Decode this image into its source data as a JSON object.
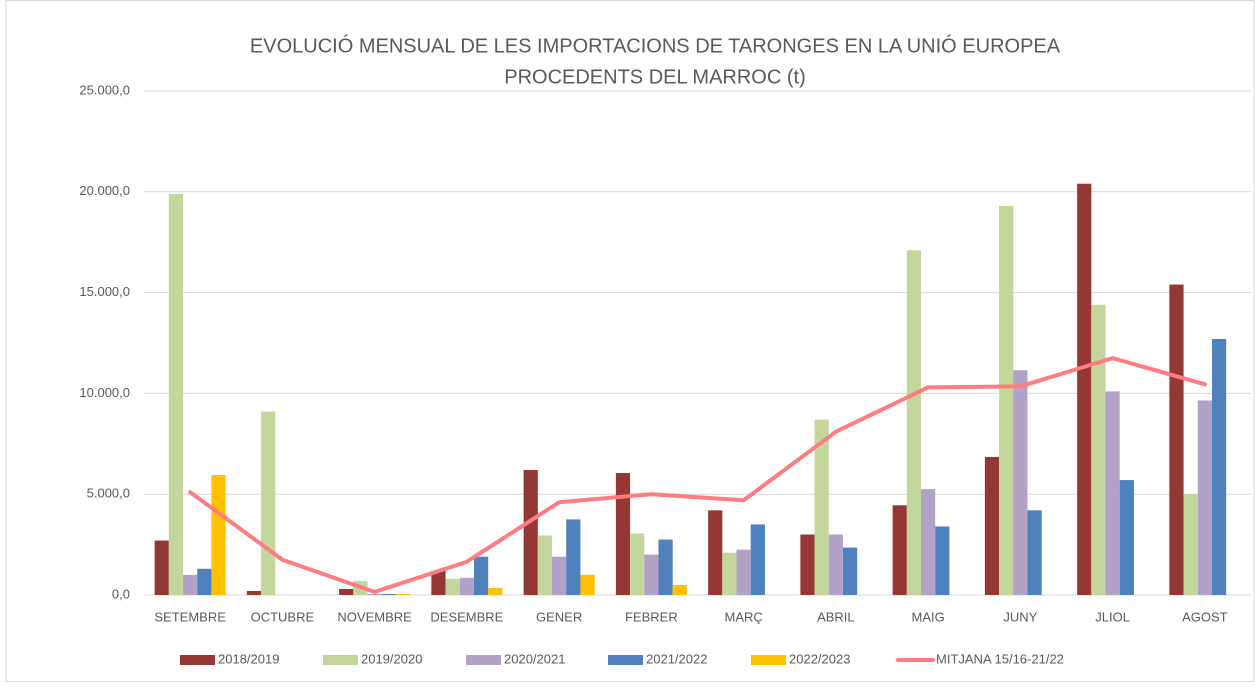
{
  "chart_data": {
    "type": "bar",
    "title": [
      "EVOLUCIÓ MENSUAL DE LES IMPORTACIONS DE TARONGES EN LA UNIÓ EUROPEA",
      "PROCEDENTS DEL MARROC (t)"
    ],
    "categories": [
      "SETEMBRE",
      "OCTUBRE",
      "NOVEMBRE",
      "DESEMBRE",
      "GENER",
      "FEBRER",
      "MARÇ",
      "ABRIL",
      "MAIG",
      "JUNY",
      "JLIOL",
      "AGOST"
    ],
    "series": [
      {
        "name": "2018/2019",
        "color": "#953735",
        "values": [
          2700,
          200,
          300,
          1200,
          6200,
          6050,
          4200,
          3000,
          4450,
          6850,
          20400,
          15400
        ]
      },
      {
        "name": "2019/2020",
        "color": "#c3d69b",
        "values": [
          19900,
          9100,
          700,
          800,
          2950,
          3050,
          2100,
          8700,
          17100,
          19300,
          14400,
          5000
        ]
      },
      {
        "name": "2020/2021",
        "color": "#b3a2c7",
        "values": [
          1000,
          null,
          50,
          850,
          1900,
          2000,
          2250,
          3000,
          5250,
          11150,
          10100,
          9650
        ]
      },
      {
        "name": "2021/2022",
        "color": "#4f81bd",
        "values": [
          1300,
          null,
          50,
          1900,
          3750,
          2750,
          3500,
          2350,
          3400,
          4200,
          5700,
          12700
        ]
      },
      {
        "name": "2022/2023",
        "color": "#ffc000",
        "values": [
          5950,
          null,
          50,
          350,
          1000,
          500,
          null,
          null,
          null,
          null,
          null,
          null
        ]
      },
      {
        "name": "MITJANA 15/16-21/22",
        "color": "#ff7c80",
        "type": "line",
        "values": [
          5100,
          1750,
          150,
          1650,
          4600,
          5000,
          4700,
          8100,
          10300,
          10350,
          11750,
          10450
        ]
      }
    ],
    "ylim": [
      0,
      25000
    ],
    "yticks": [
      {
        "value": 0,
        "label": "0,0"
      },
      {
        "value": 5000,
        "label": "5.000,0"
      },
      {
        "value": 10000,
        "label": "10.000,0"
      },
      {
        "value": 15000,
        "label": "15.000,0"
      },
      {
        "value": 20000,
        "label": "20.000,0"
      },
      {
        "value": 25000,
        "label": "25.000,0"
      }
    ],
    "grid": true,
    "legend": "bottom"
  }
}
